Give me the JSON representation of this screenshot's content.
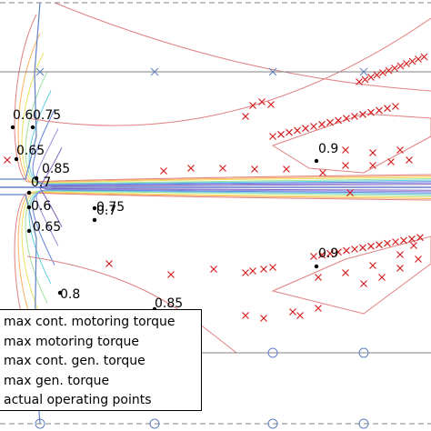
{
  "chart_data": {
    "type": "scatter",
    "title": "",
    "xlabel": "",
    "ylabel": "",
    "grid": false,
    "legend_placement": "bottom-left",
    "legend": [
      "max cont. motoring torque",
      "max motoring torque",
      "max cont. gen. torque",
      "max gen. torque",
      "actual operating points"
    ],
    "contour_labels": [
      "0.6",
      "0.75",
      "0.65",
      "0.85",
      "0.7",
      "0.6",
      "0.75",
      "0.7",
      "0.65",
      "0.9",
      "0.9",
      "0.8",
      "0.85"
    ],
    "colors": {
      "efficiency_contours": [
        "#e08080",
        "#ffb060",
        "#e8e060",
        "#a0e0a0",
        "#60d0e0",
        "#6080e0",
        "#9090e0",
        "#8060c0"
      ],
      "operating_points": "#d42020",
      "torque_limits": "#6080c0",
      "reference_lines": "#808080"
    }
  }
}
